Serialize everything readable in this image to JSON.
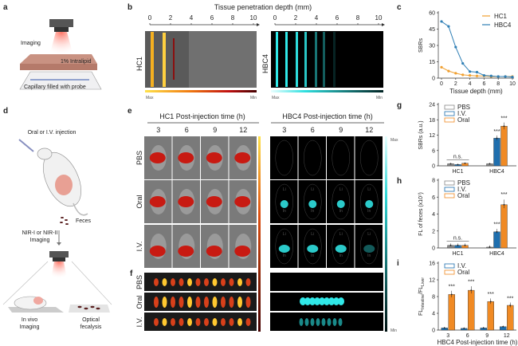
{
  "panels": {
    "a": {
      "label": "a",
      "imaging": "Imaging",
      "layer": "1% Intralipid",
      "capillary": "Capillary filled with probe"
    },
    "b": {
      "label": "b",
      "title": "Tissue penetration depth (mm)",
      "ticks": [
        "0",
        "2",
        "4",
        "6",
        "8",
        "10"
      ],
      "left_probe": "HC1",
      "right_probe": "HBC4",
      "max": "Max",
      "min": "Min"
    },
    "d": {
      "label": "d",
      "injection": "Oral or I.V. injection",
      "feces": "Feces",
      "nir": "NIR-I or NIR-II",
      "nir2": "Imaging",
      "invivo1": "In vivo",
      "invivo2": "Imaging",
      "optical1": "Optical",
      "optical2": "fecalysis"
    },
    "e": {
      "label": "e",
      "hc1_title": "HC1 Post-injection time (h)",
      "hbc4_title": "HBC4 Post-injection time (h)",
      "times": [
        "3",
        "6",
        "9",
        "12"
      ],
      "rows": [
        "PBS",
        "Oral",
        "I.V."
      ],
      "organ_li": "Li",
      "organ_in": "In",
      "max": "Max",
      "min": "Min"
    },
    "f": {
      "label": "f",
      "rows": [
        "PBS",
        "Oral",
        "I.V."
      ]
    }
  },
  "colors": {
    "hc1": "#f0a030",
    "hbc4": "#2f7fb5",
    "pbs": "#888888",
    "iv": "#1f6fae",
    "oral": "#f08a24",
    "sig": "#f08a24"
  },
  "chart_data": [
    {
      "id": "c",
      "label": "c",
      "type": "line",
      "xlabel": "Tissue depth (mm)",
      "ylabel": "SBRs",
      "x": [
        0,
        1,
        2,
        3,
        4,
        5,
        6,
        7,
        8,
        9,
        10
      ],
      "xlim": [
        0,
        10
      ],
      "ylim": [
        0,
        60
      ],
      "xticks": [
        0,
        2,
        4,
        6,
        8,
        10
      ],
      "yticks": [
        0,
        15,
        30,
        45,
        60
      ],
      "legend": "top-right",
      "series": [
        {
          "name": "HC1",
          "color": "#f0a030",
          "values": [
            10,
            6.5,
            4.5,
            3,
            2.5,
            2,
            2,
            1.5,
            1.5,
            1.5,
            1.5
          ]
        },
        {
          "name": "HBC4",
          "color": "#2f7fb5",
          "values": [
            52,
            47.5,
            28.5,
            13.5,
            6,
            5.5,
            2.5,
            2,
            1.5,
            1.5,
            1
          ]
        }
      ]
    },
    {
      "id": "g",
      "label": "g",
      "type": "bar",
      "ylabel": "SBRs (a.u.)",
      "ylim": [
        0,
        24
      ],
      "yticks": [
        0,
        6,
        12,
        18,
        24
      ],
      "categories": [
        "HC1",
        "HBC4"
      ],
      "legend": "top-left",
      "series": [
        {
          "name": "PBS",
          "color": "#888888",
          "values": [
            0.8,
            0.8
          ]
        },
        {
          "name": "I.V.",
          "color": "#1f6fae",
          "values": [
            0.5,
            10.8
          ]
        },
        {
          "name": "Oral",
          "color": "#f08a24",
          "values": [
            1.0,
            15.5
          ]
        }
      ],
      "annotations": [
        {
          "text": "n.s.",
          "category": "HC1"
        },
        {
          "text": "***",
          "category": "HBC4",
          "series": "I.V."
        },
        {
          "text": "***",
          "category": "HBC4",
          "series": "Oral"
        }
      ]
    },
    {
      "id": "h",
      "label": "h",
      "type": "bar",
      "ylabel": "FL of feces (x10⁷)",
      "ylim": [
        0,
        8
      ],
      "yticks": [
        0,
        2,
        4,
        6,
        8
      ],
      "categories": [
        "HC1",
        "HBC4"
      ],
      "legend": "top-left",
      "series": [
        {
          "name": "PBS",
          "color": "#888888",
          "values": [
            0.3,
            0.1
          ]
        },
        {
          "name": "I.V.",
          "color": "#1f6fae",
          "values": [
            0.3,
            1.9
          ]
        },
        {
          "name": "Oral",
          "color": "#f08a24",
          "values": [
            0.3,
            5.1
          ]
        }
      ],
      "annotations": [
        {
          "text": "n.s.",
          "category": "HC1"
        },
        {
          "text": "***",
          "category": "HBC4",
          "series": "I.V."
        },
        {
          "text": "***",
          "category": "HBC4",
          "series": "Oral"
        }
      ]
    },
    {
      "id": "i",
      "label": "i",
      "type": "bar",
      "ylabel": "FL_Intestine/FL_Liver",
      "ylabel_main": "FL",
      "ylabel_sub1": "Intestine",
      "ylabel_mid": "/FL",
      "ylabel_sub2": "Liver",
      "xlabel": "HBC4 Post-injection time (h)",
      "ylim": [
        0,
        16
      ],
      "yticks": [
        0,
        4,
        8,
        12,
        16
      ],
      "categories": [
        "3",
        "6",
        "9",
        "12"
      ],
      "legend": "top-left",
      "series": [
        {
          "name": "I.V.",
          "color": "#1f6fae",
          "values": [
            0.5,
            0.4,
            0.5,
            0.8
          ]
        },
        {
          "name": "Oral",
          "color": "#f08a24",
          "values": [
            8.5,
            9.5,
            6.8,
            5.9
          ]
        }
      ],
      "annotations": [
        {
          "text": "***",
          "category": "3"
        },
        {
          "text": "***",
          "category": "6"
        },
        {
          "text": "***",
          "category": "9"
        },
        {
          "text": "***",
          "category": "12"
        }
      ]
    }
  ]
}
